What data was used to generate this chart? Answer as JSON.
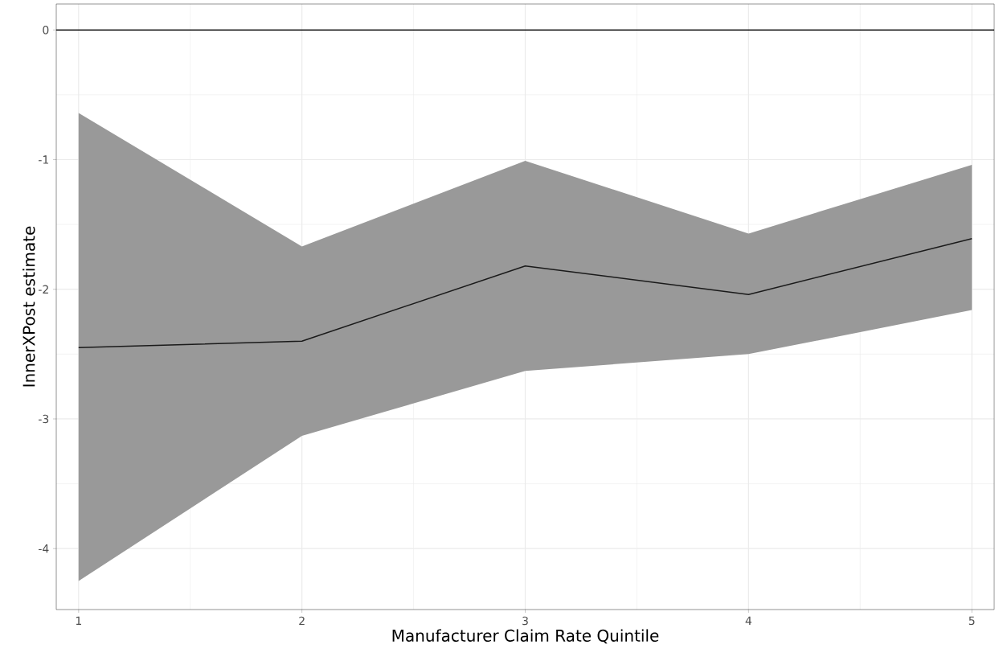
{
  "chart_data": {
    "type": "line",
    "xlabel": "Manufacturer Claim Rate Quintile",
    "ylabel": "InnerXPost estimate",
    "x": [
      1,
      2,
      3,
      4,
      5
    ],
    "series": [
      {
        "color": "#1a1a1a",
        "values": [
          -2.45,
          -2.4,
          -1.82,
          -2.04,
          -1.61
        ],
        "lower": [
          -4.25,
          -3.13,
          -2.63,
          -2.5,
          -2.16
        ],
        "upper": [
          -0.64,
          -1.67,
          -1.01,
          -1.57,
          -1.04
        ]
      }
    ],
    "xlim": [
      0.9,
      5.1
    ],
    "ylim": [
      -4.47,
      0.2
    ],
    "xticks": [
      1,
      2,
      3,
      4,
      5
    ],
    "yticks": [
      -4,
      -3,
      -2,
      -1,
      0
    ],
    "ref_lines": [
      {
        "axis": "y",
        "value": 0,
        "color": "#000000"
      }
    ],
    "grid": true
  }
}
